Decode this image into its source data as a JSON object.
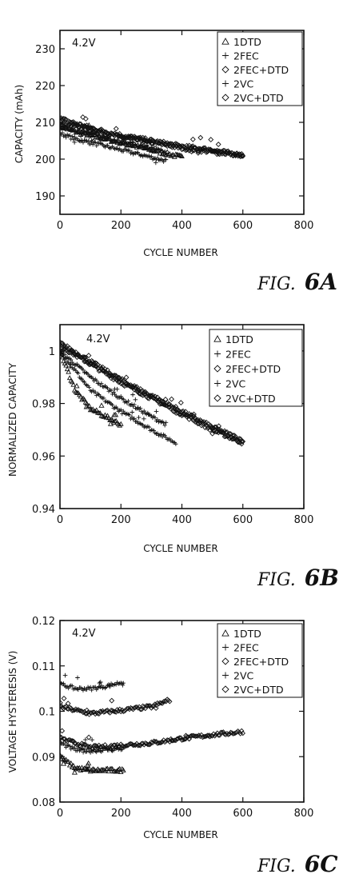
{
  "charts": [
    {
      "id": "6A",
      "fig_prefix": "FIG.",
      "fig_number": "6A",
      "annotation": "4.2V",
      "xlabel": "CYCLE NUMBER",
      "ylabel": "CAPACITY (mAh)",
      "xlim": [
        0,
        800
      ],
      "ylim": [
        185,
        235
      ],
      "xticks": [
        0,
        200,
        400,
        600,
        800
      ],
      "yticks": [
        190,
        200,
        210,
        220,
        230
      ],
      "legend": [
        {
          "label": "1DTD",
          "marker": "triangle"
        },
        {
          "label": "2FEC",
          "marker": "plus"
        },
        {
          "label": "2FEC+DTD",
          "marker": "diamond"
        },
        {
          "label": "2VC",
          "marker": "plus"
        },
        {
          "label": "2VC+DTD",
          "marker": "diamond"
        }
      ]
    },
    {
      "id": "6B",
      "fig_prefix": "FIG.",
      "fig_number": "6B",
      "annotation": "4.2V",
      "xlabel": "CYCLE NUMBER",
      "ylabel": "NORMALIZED CAPACITY",
      "xlim": [
        0,
        800
      ],
      "ylim": [
        0.94,
        1.01
      ],
      "xticks": [
        0,
        200,
        400,
        600,
        800
      ],
      "yticks": [
        0.94,
        0.96,
        0.98,
        1.0
      ],
      "yticklabels": [
        "0.94",
        "0.96",
        "0.98",
        "1"
      ],
      "legend": [
        {
          "label": "1DTD",
          "marker": "triangle"
        },
        {
          "label": "2FEC",
          "marker": "plus"
        },
        {
          "label": "2FEC+DTD",
          "marker": "diamond"
        },
        {
          "label": "2VC",
          "marker": "plus"
        },
        {
          "label": "2VC+DTD",
          "marker": "diamond"
        }
      ]
    },
    {
      "id": "6C",
      "fig_prefix": "FIG.",
      "fig_number": "6C",
      "annotation": "4.2V",
      "xlabel": "CYCLE NUMBER",
      "ylabel": "VOLTAGE HYSTERESIS (V)",
      "xlim": [
        0,
        800
      ],
      "ylim": [
        0.08,
        0.12
      ],
      "xticks": [
        0,
        200,
        400,
        600,
        800
      ],
      "yticks": [
        0.08,
        0.09,
        0.1,
        0.11,
        0.12
      ],
      "yticklabels": [
        "0.08",
        "0.09",
        "0.1",
        "0.11",
        "0.12"
      ],
      "legend": [
        {
          "label": "1DTD",
          "marker": "triangle"
        },
        {
          "label": "2FEC",
          "marker": "plus"
        },
        {
          "label": "2FEC+DTD",
          "marker": "diamond"
        },
        {
          "label": "2VC",
          "marker": "plus"
        },
        {
          "label": "2VC+DTD",
          "marker": "diamond"
        }
      ]
    }
  ],
  "chart_data": [
    {
      "type": "scatter",
      "xlabel": "CYCLE NUMBER",
      "ylabel": "CAPACITY (mAh)",
      "xlim": [
        0,
        800
      ],
      "ylim": [
        185,
        235
      ],
      "series": [
        {
          "name": "1DTD",
          "marker": "triangle",
          "x": [
            0,
            50,
            100,
            150,
            200,
            250,
            300,
            350,
            400
          ],
          "y": [
            209,
            207.5,
            206.5,
            205.5,
            204.5,
            203.5,
            202.5,
            201.5,
            200.5
          ]
        },
        {
          "name": "2FEC",
          "marker": "plus",
          "x": [
            0,
            50,
            100,
            150,
            200,
            250,
            300,
            350
          ],
          "y": [
            207,
            205.5,
            204.5,
            203.5,
            202.5,
            201.5,
            200.5,
            199.5
          ]
        },
        {
          "name": "2FEC+DTD",
          "marker": "diamond",
          "x": [
            0,
            100,
            200,
            300,
            400,
            500,
            600
          ],
          "y": [
            210,
            208,
            206,
            204.5,
            203,
            202,
            201
          ]
        },
        {
          "name": "2VC",
          "marker": "plus",
          "x": [
            0,
            50,
            100,
            150,
            200,
            250,
            300,
            350
          ],
          "y": [
            209,
            207.8,
            206.8,
            205.8,
            204.8,
            203.8,
            202.8,
            201.8
          ]
        },
        {
          "name": "2VC+DTD",
          "marker": "diamond",
          "x": [
            0,
            100,
            200,
            300,
            400,
            500,
            600
          ],
          "y": [
            211,
            208.5,
            206.5,
            205,
            203.5,
            202.5,
            201
          ]
        }
      ]
    },
    {
      "type": "scatter",
      "xlabel": "CYCLE NUMBER",
      "ylabel": "NORMALIZED CAPACITY",
      "xlim": [
        0,
        800
      ],
      "ylim": [
        0.94,
        1.01
      ],
      "series": [
        {
          "name": "1DTD",
          "marker": "triangle",
          "x": [
            0,
            50,
            100,
            150,
            200
          ],
          "y": [
            1.0,
            0.985,
            0.978,
            0.975,
            0.972
          ]
        },
        {
          "name": "2FEC",
          "marker": "plus",
          "x": [
            0,
            100,
            200,
            300,
            380
          ],
          "y": [
            1.0,
            0.985,
            0.977,
            0.97,
            0.965
          ]
        },
        {
          "name": "2FEC+DTD",
          "marker": "diamond",
          "x": [
            0,
            100,
            200,
            300,
            400,
            500,
            600
          ],
          "y": [
            1.002,
            0.995,
            0.988,
            0.982,
            0.976,
            0.97,
            0.965
          ]
        },
        {
          "name": "2VC",
          "marker": "plus",
          "x": [
            0,
            100,
            200,
            300,
            350
          ],
          "y": [
            1.0,
            0.99,
            0.982,
            0.975,
            0.972
          ]
        },
        {
          "name": "2VC+DTD",
          "marker": "diamond",
          "x": [
            0,
            100,
            200,
            300,
            400,
            500,
            600
          ],
          "y": [
            1.003,
            0.996,
            0.989,
            0.983,
            0.977,
            0.971,
            0.966
          ]
        }
      ]
    },
    {
      "type": "scatter",
      "xlabel": "CYCLE NUMBER",
      "ylabel": "VOLTAGE HYSTERESIS (V)",
      "xlim": [
        0,
        800
      ],
      "ylim": [
        0.08,
        0.12
      ],
      "series": [
        {
          "name": "1DTD",
          "marker": "triangle",
          "x": [
            0,
            50,
            100,
            150,
            210
          ],
          "y": [
            0.09,
            0.0875,
            0.087,
            0.087,
            0.087
          ]
        },
        {
          "name": "2FEC",
          "marker": "plus",
          "x": [
            0,
            50,
            100,
            150,
            210
          ],
          "y": [
            0.106,
            0.105,
            0.105,
            0.1055,
            0.1065
          ]
        },
        {
          "name": "2FEC+DTD",
          "marker": "diamond",
          "x": [
            0,
            100,
            200,
            300,
            400,
            500,
            600
          ],
          "y": [
            0.094,
            0.092,
            0.0925,
            0.093,
            0.094,
            0.0948,
            0.0955
          ]
        },
        {
          "name": "2VC",
          "marker": "plus",
          "x": [
            0,
            50,
            100,
            150,
            210
          ],
          "y": [
            0.093,
            0.0915,
            0.0913,
            0.0915,
            0.0918
          ]
        },
        {
          "name": "2VC+DTD",
          "marker": "diamond",
          "x": [
            0,
            100,
            200,
            300,
            360
          ],
          "y": [
            0.101,
            0.0995,
            0.1002,
            0.101,
            0.1025
          ]
        }
      ]
    }
  ]
}
